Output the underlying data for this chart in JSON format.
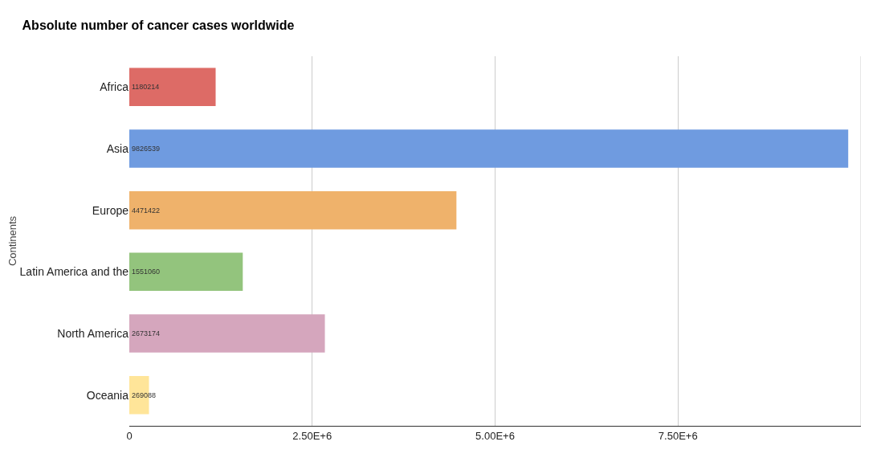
{
  "chart_data": {
    "type": "bar",
    "orientation": "horizontal",
    "title": "Absolute number of cancer cases worldwide",
    "ylabel": "Continents",
    "categories": [
      "Africa",
      "Asia",
      "Europe",
      "Latin America and the",
      "North America",
      "Oceania"
    ],
    "values": [
      1180214,
      9826539,
      4471422,
      1551060,
      2673174,
      269088
    ],
    "colors": [
      "#dd6b66",
      "#6f9be0",
      "#efb26b",
      "#93c47d",
      "#d5a6bd",
      "#ffe599"
    ],
    "xlim": [
      0,
      10000000
    ],
    "xticks": [
      0,
      {
        "value": 2500000,
        "label": "2.50E+6"
      },
      {
        "value": 5000000,
        "label": "5.00E+6"
      },
      {
        "value": 7500000,
        "label": "7.50E+6"
      }
    ],
    "grid": "x",
    "data_labels": true
  }
}
